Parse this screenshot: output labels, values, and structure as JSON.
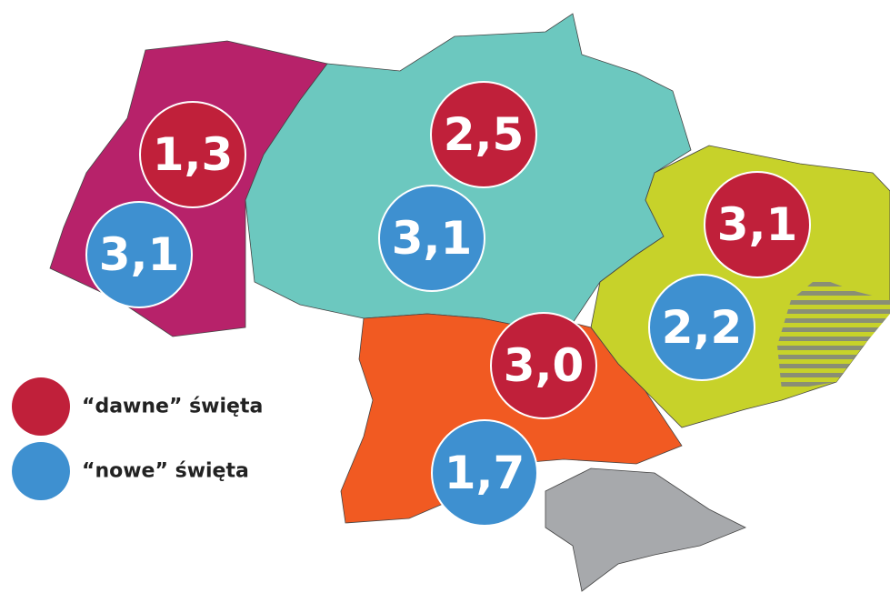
{
  "regions": [
    {
      "old": "1,3",
      "new": "3,1"
    },
    {
      "old": "2,5",
      "new": "3,1"
    },
    {
      "old": "3,1",
      "new": "2,2"
    },
    {
      "old": "3,0",
      "new": "1,7"
    }
  ],
  "legend": {
    "old": "“dawne” święta",
    "new": "“nowe” święta"
  }
}
